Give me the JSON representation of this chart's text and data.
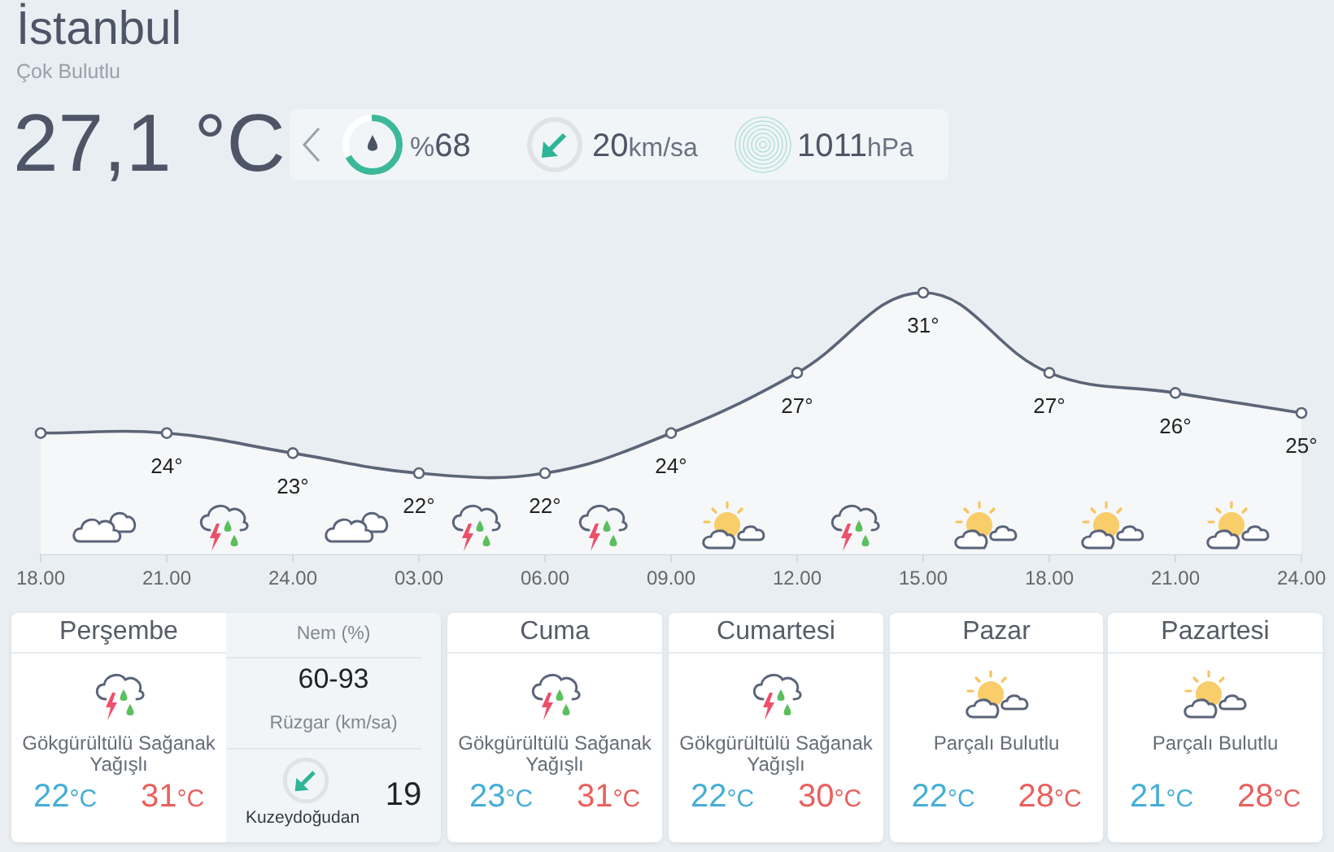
{
  "chart_data": [
    {
      "type": "other",
      "title": "İstanbul",
      "subtitle": "Çok Bulutlu",
      "annotations": [
        "27,1 °C",
        "%68",
        "20km/sa",
        "1011hPa"
      ]
    },
    {
      "type": "area",
      "categories": [
        "18.00",
        "21.00",
        "24.00",
        "03.00",
        "06.00",
        "09.00",
        "12.00",
        "15.00",
        "18.00",
        "21.00",
        "24.00"
      ],
      "values": [
        24,
        24,
        23,
        22,
        22,
        24,
        27,
        31,
        27,
        26,
        25
      ],
      "color": "#5c6577",
      "value_labels": [
        null,
        "24°",
        "23°",
        "22°",
        "22°",
        "24°",
        "27°",
        "31°",
        "27°",
        "26°",
        "25°"
      ],
      "marker": "circle",
      "tick_labels": "x"
    },
    {
      "type": "other",
      "title": "Perşembe",
      "annotations": [
        "Gökgürültülü Sağanak Yağışlı",
        "22°C",
        "31°C",
        "Nem (%)",
        "60-93",
        "Rüzgar (km/sa)",
        "Kuzeydoğudan",
        "19"
      ]
    },
    {
      "type": "other",
      "title": "Cuma",
      "annotations": [
        "Gökgürültülü Sağanak Yağışlı",
        "23°C",
        "31°C"
      ]
    },
    {
      "type": "other",
      "title": "Cumartesi",
      "annotations": [
        "Gökgürültülü Sağanak Yağışlı",
        "22°C",
        "30°C"
      ]
    },
    {
      "type": "other",
      "title": "Pazar",
      "annotations": [
        "Parçalı Bulutlu",
        "22°C",
        "28°C"
      ]
    },
    {
      "type": "other",
      "title": "Pazartesi",
      "annotations": [
        "Parçalı Bulutlu",
        "21°C",
        "28°C"
      ]
    }
  ]
}
